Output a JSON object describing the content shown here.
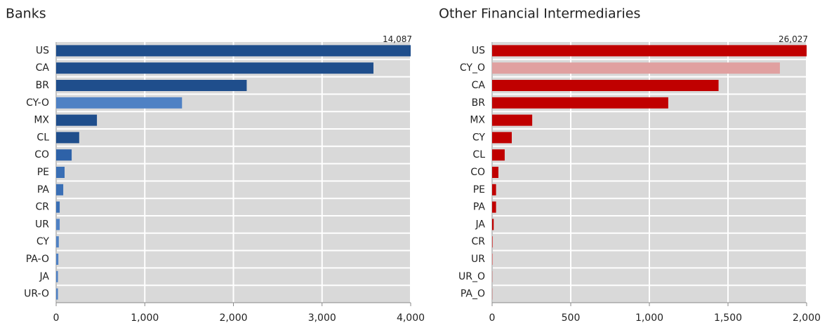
{
  "chart_data": [
    {
      "type": "barh",
      "title": "Banks",
      "categories": [
        "US",
        "CA",
        "BR",
        "CY-O",
        "MX",
        "CL",
        "CO",
        "PE",
        "PA",
        "CR",
        "UR",
        "CY",
        "PA-O",
        "JA",
        "UR-O"
      ],
      "values": [
        14087,
        3580,
        2150,
        1420,
        460,
        260,
        175,
        95,
        80,
        40,
        40,
        30,
        25,
        20,
        20
      ],
      "value_labels": [
        "14,087",
        null,
        null,
        null,
        null,
        null,
        null,
        null,
        null,
        null,
        null,
        null,
        null,
        null,
        null
      ],
      "colors": [
        "#1f4e8c",
        "#1f4e8c",
        "#1f4e8c",
        "#4f81c4",
        "#1f4e8c",
        "#1f4e8c",
        "#2e62a8",
        "#3a6fb5",
        "#3a6fb5",
        "#3a6fb5",
        "#4f81c4",
        "#4f81c4",
        "#4f81c4",
        "#4f81c4",
        "#4f81c4"
      ],
      "xlim": [
        0,
        4000
      ],
      "xticks": [
        0,
        {
          "value": 1000,
          "label": "1,000"
        },
        {
          "value": 2000,
          "label": "2,000"
        },
        {
          "value": 3000,
          "label": "3,000"
        },
        {
          "value": 4000,
          "label": "4,000"
        }
      ],
      "grid": true
    },
    {
      "type": "barh",
      "title": "Other Financial Intermediaries",
      "categories": [
        "US",
        "CY_O",
        "CA",
        "BR",
        "MX",
        "CY",
        "CL",
        "CO",
        "PE",
        "PA",
        "JA",
        "CR",
        "UR",
        "UR_O",
        "PA_O"
      ],
      "values": [
        26027,
        1830,
        1440,
        1120,
        255,
        125,
        80,
        40,
        25,
        25,
        10,
        3,
        2,
        1,
        1
      ],
      "value_labels": [
        "26,027",
        null,
        null,
        null,
        null,
        null,
        null,
        null,
        null,
        null,
        null,
        null,
        null,
        null,
        null
      ],
      "colors": [
        "#c00000",
        "#e0a0a0",
        "#c00000",
        "#c00000",
        "#c00000",
        "#c00000",
        "#c00000",
        "#c00000",
        "#c00000",
        "#c00000",
        "#c00000",
        "#c00000",
        "#c00000",
        "#c00000",
        "#c00000"
      ],
      "xlim": [
        0,
        2000
      ],
      "xticks": [
        0,
        500,
        {
          "value": 1000,
          "label": "1,000"
        },
        {
          "value": 1500,
          "label": "1,500"
        },
        {
          "value": 2000,
          "label": "2,000"
        }
      ],
      "grid": true
    }
  ]
}
